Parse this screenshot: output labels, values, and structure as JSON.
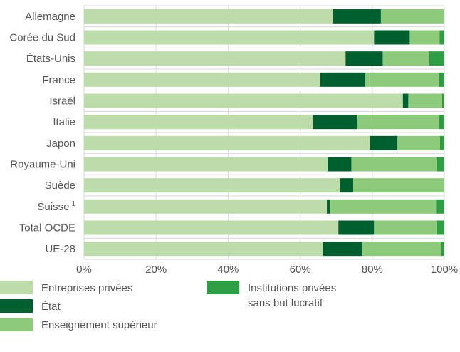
{
  "chart_data": {
    "type": "bar",
    "orientation": "horizontal",
    "stacked": true,
    "categories": [
      "Allemagne",
      "Corée du Sud",
      "États-Unis",
      "France",
      "Israël",
      "Italie",
      "Japon",
      "Royaume-Uni",
      "Suède",
      "Suisse",
      "Total OCDE",
      "UE-28"
    ],
    "category_superscripts": {
      "Suisse": "1"
    },
    "series": [
      {
        "name": "Entreprises privées",
        "color": "#bcdcaa",
        "values": [
          69,
          80.5,
          72.6,
          65.5,
          88.5,
          63.5,
          79.4,
          67.6,
          71,
          67.4,
          70.6,
          66.3
        ]
      },
      {
        "name": "État",
        "color": "#005f2e",
        "values": [
          13.4,
          9.9,
          10.3,
          12.5,
          1.5,
          12.2,
          7.6,
          6.6,
          3.7,
          1,
          9.9,
          10.9
        ]
      },
      {
        "name": "Enseignement supérieur",
        "color": "#8ccb7a",
        "values": [
          17.6,
          8.3,
          12.9,
          20.5,
          9.4,
          22.8,
          11.8,
          23.6,
          25.3,
          29.3,
          17.3,
          22
        ]
      },
      {
        "name": "Institutions privées\nsans but lucratif",
        "color": "#2e9e45",
        "values": [
          0,
          1.3,
          4.2,
          1.5,
          0.6,
          1.5,
          1.2,
          2.2,
          0,
          2.3,
          2.2,
          0.8
        ]
      }
    ],
    "xlim": [
      0,
      100
    ],
    "x_ticks": [
      "0%",
      "20%",
      "40%",
      "60%",
      "80%",
      "100%"
    ],
    "grid": "vertical",
    "legend_position": "bottom",
    "gridline_color": "#d9d9d9"
  }
}
